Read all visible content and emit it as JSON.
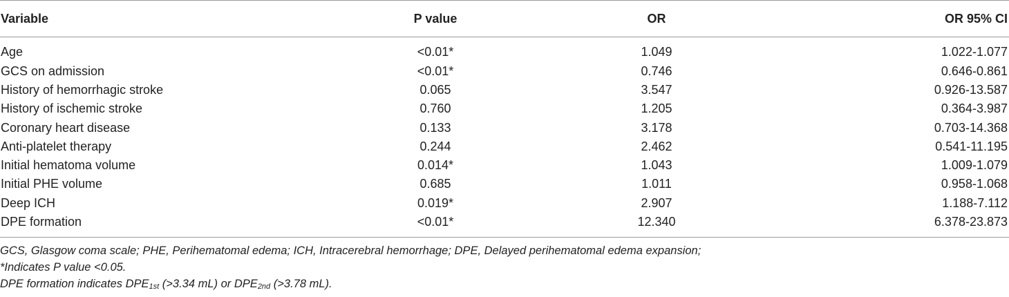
{
  "table": {
    "headers": [
      "Variable",
      "P value",
      "OR",
      "OR 95% CI"
    ],
    "rows": [
      [
        "Age",
        "<0.01*",
        "1.049",
        "1.022-1.077"
      ],
      [
        "GCS on admission",
        "<0.01*",
        "0.746",
        "0.646-0.861"
      ],
      [
        "History of hemorrhagic stroke",
        "0.065",
        "3.547",
        "0.926-13.587"
      ],
      [
        "History of ischemic stroke",
        "0.760",
        "1.205",
        "0.364-3.987"
      ],
      [
        "Coronary heart disease",
        "0.133",
        "3.178",
        "0.703-14.368"
      ],
      [
        "Anti-platelet therapy",
        "0.244",
        "2.462",
        "0.541-11.195"
      ],
      [
        "Initial hematoma volume",
        "0.014*",
        "1.043",
        "1.009-1.079"
      ],
      [
        "Initial PHE volume",
        "0.685",
        "1.011",
        "0.958-1.068"
      ],
      [
        "Deep ICH",
        "0.019*",
        "2.907",
        "1.188-7.112"
      ],
      [
        "DPE formation",
        "<0.01*",
        "12.340",
        "6.378-23.873"
      ]
    ]
  },
  "footnotes": {
    "abbreviations": "GCS, Glasgow coma scale; PHE, Perihematomal edema; ICH, Intracerebral hemorrhage; DPE, Delayed perihematomal edema expansion;",
    "significance": "*Indicates P value <0.05.",
    "dpe_prefix": "DPE formation indicates DPE",
    "dpe_sub1": "1st",
    "dpe_mid": " (>3.34 mL) or DPE",
    "dpe_sub2": "2nd",
    "dpe_suffix": " (>3.78 mL)."
  }
}
